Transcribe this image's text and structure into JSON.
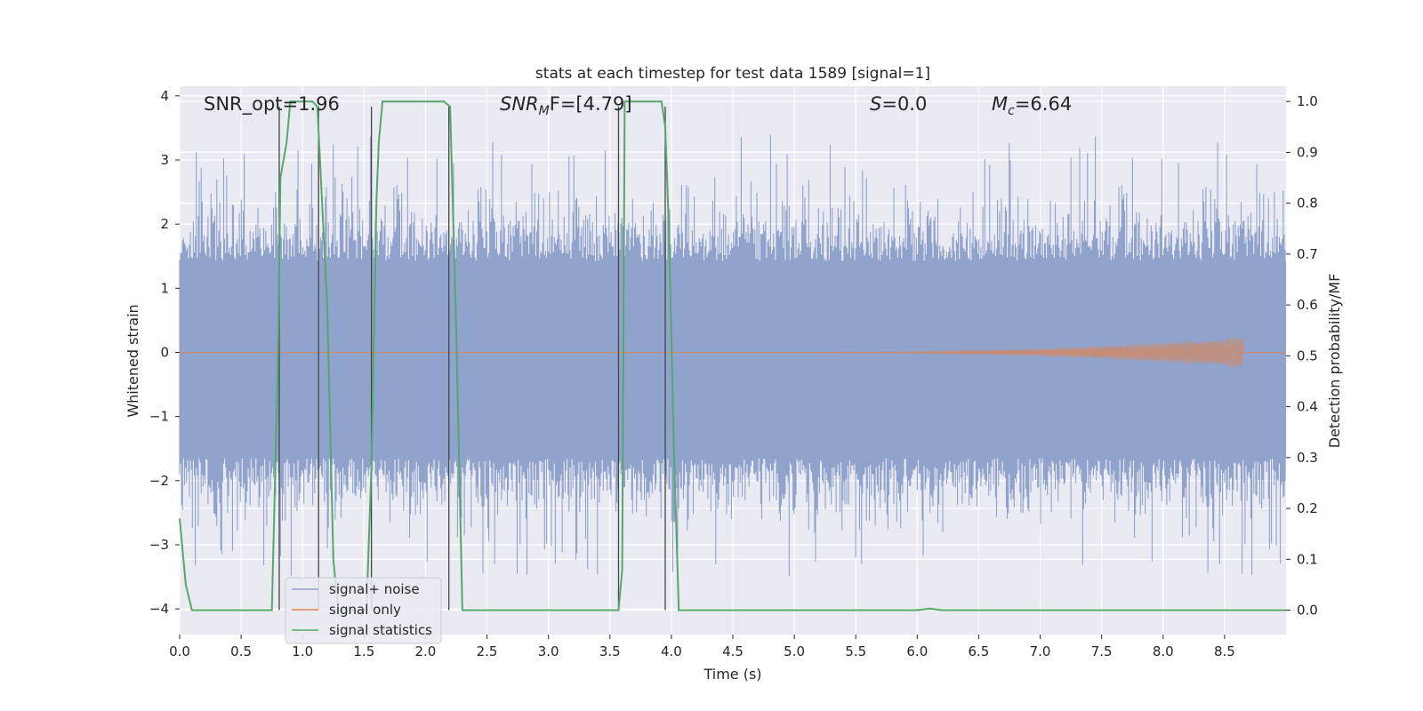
{
  "chart_data": {
    "type": "line",
    "title": "stats at each timestep for test data 1589 [signal=1]",
    "xlabel": "Time (s)",
    "ylabel": "Whitened strain",
    "y2label": "Detection probability/MF",
    "xlim": [
      0,
      9.0
    ],
    "ylim": [
      -4.4,
      4.15
    ],
    "y2lim": [
      -0.048,
      1.03
    ],
    "x_ticks": [
      "0.0",
      "0.5",
      "1.0",
      "1.5",
      "2.0",
      "2.5",
      "3.0",
      "3.5",
      "4.0",
      "4.5",
      "5.0",
      "5.5",
      "6.0",
      "6.5",
      "7.0",
      "7.5",
      "8.0",
      "8.5"
    ],
    "y_ticks": [
      "4",
      "3",
      "2",
      "1",
      "0",
      "−1",
      "−2",
      "−3",
      "−4"
    ],
    "y2_ticks": [
      "1.0",
      "0.9",
      "0.8",
      "0.7",
      "0.6",
      "0.5",
      "0.4",
      "0.3",
      "0.2",
      "0.1",
      "0.0"
    ],
    "grid": true,
    "legend_position": "lower-left",
    "annotations": {
      "snr_opt": "SNR_opt=1.96",
      "snr_mf_base": "SNR",
      "snr_mf_sub": "M",
      "snr_mf_rest": "F=[4.79]",
      "s_base": "S",
      "s_rest": "=0.0",
      "mc_base": "M",
      "mc_sub": "c",
      "mc_rest": "=6.64"
    },
    "series": [
      {
        "name": "signal+ noise",
        "color": "#8fa3cc",
        "note_band": [
          -1.65,
          1.42
        ],
        "spike_extent": [
          -4.0,
          3.8
        ]
      },
      {
        "name": "signal only",
        "color": "#dd8452",
        "chirp_start": 5.2,
        "chirp_end": 8.65,
        "chirp_max_amp": 0.25
      },
      {
        "name": "signal statistics",
        "color": "#55a868",
        "x": [
          0.0,
          0.05,
          0.1,
          0.75,
          0.8,
          0.82,
          0.87,
          0.9,
          1.08,
          1.12,
          1.2,
          1.25,
          1.29,
          1.32,
          1.52,
          1.56,
          1.6,
          1.62,
          1.65,
          2.15,
          2.2,
          2.25,
          2.3,
          2.35,
          3.57,
          3.6,
          3.62,
          3.68,
          3.92,
          3.95,
          3.98,
          4.02,
          4.06,
          6.0,
          6.1,
          6.2,
          9.0
        ],
        "y": [
          0.18,
          0.05,
          0.0,
          0.0,
          0.5,
          0.85,
          0.92,
          1.0,
          1.0,
          0.99,
          0.6,
          0.1,
          0.0,
          0.0,
          0.0,
          0.28,
          0.8,
          0.92,
          1.0,
          1.0,
          0.99,
          0.55,
          0.0,
          0.0,
          0.0,
          0.08,
          1.0,
          1.0,
          1.0,
          0.95,
          0.75,
          0.32,
          0.0,
          0.0,
          0.003,
          0.0,
          0.0
        ],
        "axis": "right"
      },
      {
        "name": "markers",
        "color": "#444444",
        "vlines": [
          0.81,
          1.13,
          1.56,
          2.19,
          3.57,
          3.95
        ],
        "vline_top": 0.99,
        "vline_bottom": 0.0,
        "axis": "right"
      }
    ]
  }
}
